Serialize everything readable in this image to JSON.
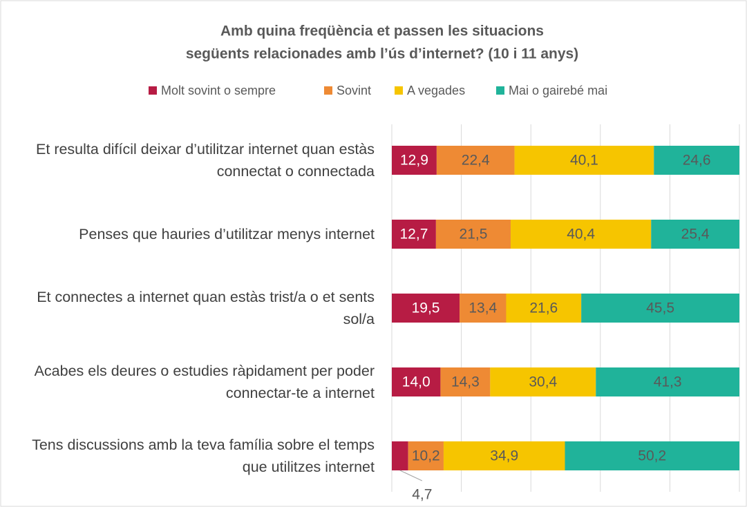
{
  "chart_data": {
    "type": "stacked-bar-horizontal",
    "title": [
      "Amb quina freqüència et passen les situacions",
      "següents relacionades amb l’ús d’internet? (10 i 11 anys)"
    ],
    "categories": [
      "Et resulta difícil deixar d’utilitzar internet quan estàs connectat o connectada",
      "Penses que hauries d’utilitzar menys internet",
      "Et connectes a internet quan estàs trist/a o et sents sol/a",
      "Acabes els deures o estudies ràpidament per poder connectar-te a internet",
      "Tens discussions amb la teva família sobre el temps que utilitzes internet"
    ],
    "series": [
      {
        "name": "Molt sovint o sempre",
        "color": "#b71c44",
        "values": [
          12.9,
          12.7,
          19.5,
          14.0,
          4.7
        ],
        "value_labels": [
          "12,9",
          "12,7",
          "19,5",
          "14,0",
          "4,7"
        ]
      },
      {
        "name": "Sovint",
        "color": "#ee8a34",
        "values": [
          22.4,
          21.5,
          13.4,
          14.3,
          10.2
        ],
        "value_labels": [
          "22,4",
          "21,5",
          "13,4",
          "14,3",
          "10,2"
        ]
      },
      {
        "name": "A vegades",
        "color": "#f6c500",
        "values": [
          40.1,
          40.4,
          21.6,
          30.4,
          34.9
        ],
        "value_labels": [
          "40,1",
          "40,4",
          "21,6",
          "30,4",
          "34,9"
        ]
      },
      {
        "name": "Mai o gairebé mai",
        "color": "#20b39a",
        "values": [
          24.6,
          25.4,
          45.5,
          41.3,
          50.2
        ],
        "value_labels": [
          "24,6",
          "25,4",
          "45,5",
          "41,3",
          "50,2"
        ]
      }
    ],
    "xlim": [
      0,
      100
    ],
    "xticks": [
      0,
      20,
      40,
      60,
      80,
      100
    ],
    "grid": true,
    "legend": "top"
  }
}
